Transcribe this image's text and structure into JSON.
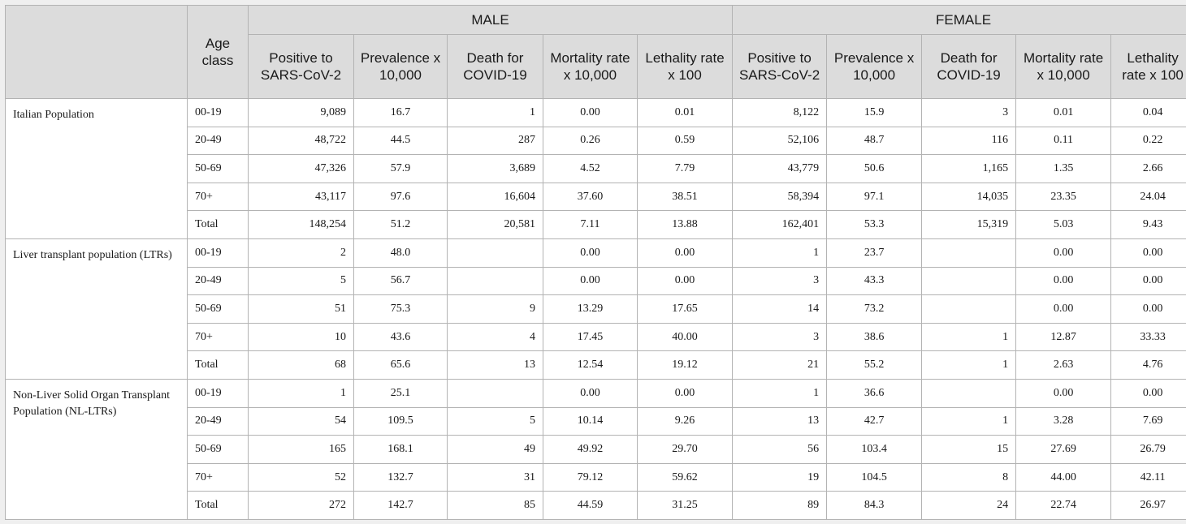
{
  "header": {
    "age_class": "Age class",
    "male": "MALE",
    "female": "FEMALE",
    "columns": [
      "Positive to SARS-CoV-2",
      "Prevalence x 10,000",
      "Death for COVID-19",
      "Mortality rate x 10,000",
      "Lethality rate x 100"
    ]
  },
  "groups": [
    {
      "population": "Italian Population",
      "rows": [
        {
          "age": "00-19",
          "m": [
            "9,089",
            "16.7",
            "1",
            "0.00",
            "0.01"
          ],
          "f": [
            "8,122",
            "15.9",
            "3",
            "0.01",
            "0.04"
          ]
        },
        {
          "age": "20-49",
          "m": [
            "48,722",
            "44.5",
            "287",
            "0.26",
            "0.59"
          ],
          "f": [
            "52,106",
            "48.7",
            "116",
            "0.11",
            "0.22"
          ]
        },
        {
          "age": "50-69",
          "m": [
            "47,326",
            "57.9",
            "3,689",
            "4.52",
            "7.79"
          ],
          "f": [
            "43,779",
            "50.6",
            "1,165",
            "1.35",
            "2.66"
          ]
        },
        {
          "age": "70+",
          "m": [
            "43,117",
            "97.6",
            "16,604",
            "37.60",
            "38.51"
          ],
          "f": [
            "58,394",
            "97.1",
            "14,035",
            "23.35",
            "24.04"
          ]
        },
        {
          "age": "Total",
          "m": [
            "148,254",
            "51.2",
            "20,581",
            "7.11",
            "13.88"
          ],
          "f": [
            "162,401",
            "53.3",
            "15,319",
            "5.03",
            "9.43"
          ]
        }
      ]
    },
    {
      "population": "Liver transplant population (LTRs)",
      "rows": [
        {
          "age": "00-19",
          "m": [
            "2",
            "48.0",
            "",
            "0.00",
            "0.00"
          ],
          "f": [
            "1",
            "23.7",
            "",
            "0.00",
            "0.00"
          ]
        },
        {
          "age": "20-49",
          "m": [
            "5",
            "56.7",
            "",
            "0.00",
            "0.00"
          ],
          "f": [
            "3",
            "43.3",
            "",
            "0.00",
            "0.00"
          ]
        },
        {
          "age": "50-69",
          "m": [
            "51",
            "75.3",
            "9",
            "13.29",
            "17.65"
          ],
          "f": [
            "14",
            "73.2",
            "",
            "0.00",
            "0.00"
          ]
        },
        {
          "age": "70+",
          "m": [
            "10",
            "43.6",
            "4",
            "17.45",
            "40.00"
          ],
          "f": [
            "3",
            "38.6",
            "1",
            "12.87",
            "33.33"
          ]
        },
        {
          "age": "Total",
          "m": [
            "68",
            "65.6",
            "13",
            "12.54",
            "19.12"
          ],
          "f": [
            "21",
            "55.2",
            "1",
            "2.63",
            "4.76"
          ]
        }
      ]
    },
    {
      "population": "Non-Liver Solid Organ Transplant Population (NL-LTRs)",
      "rows": [
        {
          "age": "00-19",
          "m": [
            "1",
            "25.1",
            "",
            "0.00",
            "0.00"
          ],
          "f": [
            "1",
            "36.6",
            "",
            "0.00",
            "0.00"
          ]
        },
        {
          "age": "20-49",
          "m": [
            "54",
            "109.5",
            "5",
            "10.14",
            "9.26"
          ],
          "f": [
            "13",
            "42.7",
            "1",
            "3.28",
            "7.69"
          ]
        },
        {
          "age": "50-69",
          "m": [
            "165",
            "168.1",
            "49",
            "49.92",
            "29.70"
          ],
          "f": [
            "56",
            "103.4",
            "15",
            "27.69",
            "26.79"
          ]
        },
        {
          "age": "70+",
          "m": [
            "52",
            "132.7",
            "31",
            "79.12",
            "59.62"
          ],
          "f": [
            "19",
            "104.5",
            "8",
            "44.00",
            "42.11"
          ]
        },
        {
          "age": "Total",
          "m": [
            "272",
            "142.7",
            "85",
            "44.59",
            "31.25"
          ],
          "f": [
            "89",
            "84.3",
            "24",
            "22.74",
            "26.97"
          ]
        }
      ]
    }
  ]
}
